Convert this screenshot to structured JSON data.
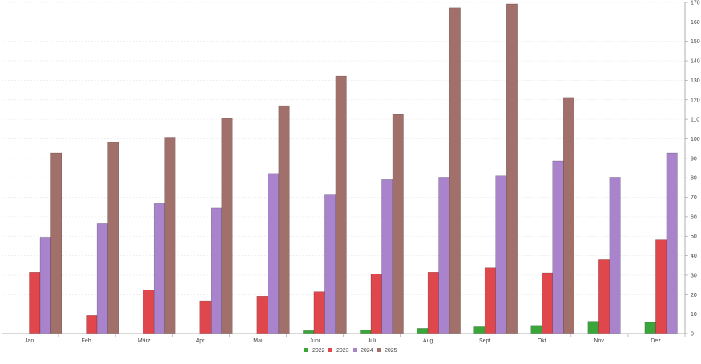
{
  "chart_data": {
    "type": "bar",
    "title": "",
    "xlabel": "",
    "ylabel": "",
    "ylim": [
      0,
      170
    ],
    "ytick_step": 10,
    "grid": true,
    "y_axis_position": "right",
    "legend_position": "bottom-center",
    "categories": [
      "Jan.",
      "Feb.",
      "März",
      "Apr.",
      "Mai",
      "Juni",
      "Juli",
      "Aug.",
      "Sept.",
      "Okt.",
      "Nov.",
      "Dez."
    ],
    "series": [
      {
        "name": "2022",
        "color": "#3aa63a",
        "values": [
          0,
          0,
          0,
          0,
          0,
          1.5,
          1.8,
          2.7,
          3.5,
          4.2,
          6.3,
          5.8
        ]
      },
      {
        "name": "2023",
        "color": "#e0474c",
        "values": [
          31.5,
          9.3,
          22.5,
          16.8,
          19.2,
          21.5,
          30.6,
          31.5,
          33.8,
          31.2,
          38.0,
          48.2
        ]
      },
      {
        "name": "2024",
        "color": "#a983cc",
        "values": [
          49.5,
          56.5,
          66.8,
          64.5,
          82.2,
          71.2,
          79.1,
          80.3,
          81.0,
          88.7,
          80.3,
          92.8
        ]
      },
      {
        "name": "2025",
        "color": "#a2706a",
        "values": [
          92.8,
          98.2,
          100.8,
          110.5,
          117.0,
          132.2,
          112.5,
          167.2,
          169.2,
          121.2,
          null,
          null
        ]
      }
    ]
  }
}
